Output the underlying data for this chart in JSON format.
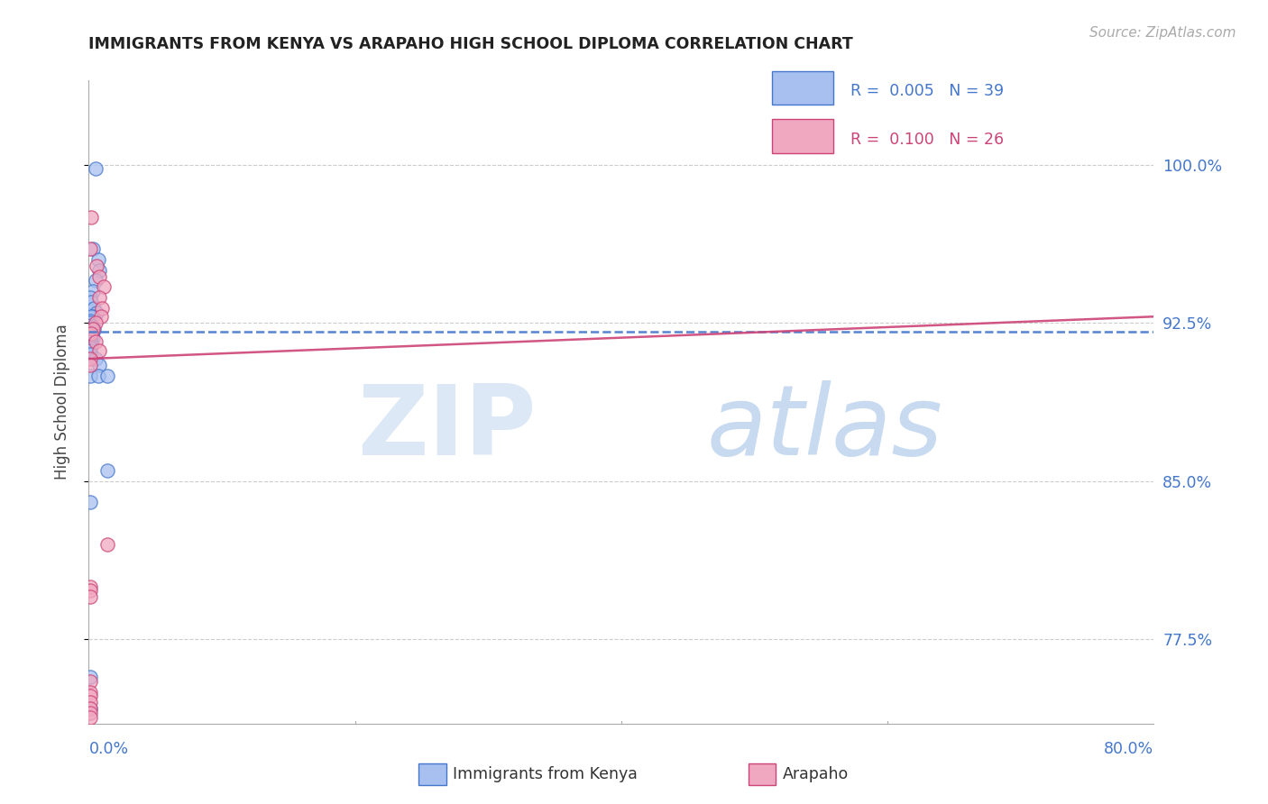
{
  "title": "IMMIGRANTS FROM KENYA VS ARAPAHO HIGH SCHOOL DIPLOMA CORRELATION CHART",
  "source": "Source: ZipAtlas.com",
  "ylabel": "High School Diploma",
  "ytick_labels": [
    "100.0%",
    "92.5%",
    "85.0%",
    "77.5%"
  ],
  "ytick_values": [
    1.0,
    0.925,
    0.85,
    0.775
  ],
  "xmin": 0.0,
  "xmax": 0.8,
  "ymin": 0.735,
  "ymax": 1.04,
  "legend_blue_r": "0.005",
  "legend_blue_n": "39",
  "legend_pink_r": "0.100",
  "legend_pink_n": "26",
  "blue_color": "#a8c0f0",
  "pink_color": "#f0a8c0",
  "blue_edge_color": "#4477cc",
  "pink_edge_color": "#cc4477",
  "line_blue_color": "#4477cc",
  "line_pink_color": "#cc4477",
  "axis_color": "#4477cc",
  "blue_scatter_x": [
    0.005,
    0.003,
    0.007,
    0.008,
    0.005,
    0.003,
    0.001,
    0.002,
    0.004,
    0.006,
    0.003,
    0.002,
    0.001,
    0.001,
    0.002,
    0.003,
    0.004,
    0.003,
    0.002,
    0.001,
    0.001,
    0.002,
    0.003,
    0.001,
    0.001,
    0.002,
    0.001,
    0.001,
    0.001,
    0.001,
    0.005,
    0.008,
    0.001,
    0.007,
    0.014,
    0.001,
    0.014,
    0.001,
    0.001
  ],
  "blue_scatter_y": [
    0.998,
    0.96,
    0.955,
    0.95,
    0.945,
    0.94,
    0.937,
    0.935,
    0.932,
    0.93,
    0.928,
    0.928,
    0.926,
    0.925,
    0.924,
    0.923,
    0.922,
    0.921,
    0.92,
    0.92,
    0.919,
    0.918,
    0.918,
    0.917,
    0.916,
    0.915,
    0.914,
    0.913,
    0.912,
    0.91,
    0.908,
    0.905,
    0.9,
    0.9,
    0.855,
    0.84,
    0.9,
    0.757,
    0.742
  ],
  "pink_scatter_x": [
    0.002,
    0.001,
    0.006,
    0.008,
    0.011,
    0.008,
    0.01,
    0.009,
    0.005,
    0.003,
    0.002,
    0.005,
    0.008,
    0.001,
    0.001,
    0.001,
    0.014,
    0.001,
    0.001,
    0.001,
    0.001,
    0.001,
    0.001,
    0.001,
    0.001,
    0.001
  ],
  "pink_scatter_y": [
    0.975,
    0.96,
    0.952,
    0.947,
    0.942,
    0.937,
    0.932,
    0.928,
    0.925,
    0.922,
    0.92,
    0.916,
    0.912,
    0.908,
    0.905,
    0.8,
    0.82,
    0.798,
    0.795,
    0.755,
    0.75,
    0.748,
    0.745,
    0.742,
    0.74,
    0.738
  ],
  "blue_line_x": [
    0.0,
    0.8
  ],
  "blue_line_y": [
    0.921,
    0.921
  ],
  "pink_line_x": [
    0.0,
    0.8
  ],
  "pink_line_y": [
    0.908,
    0.928
  ]
}
